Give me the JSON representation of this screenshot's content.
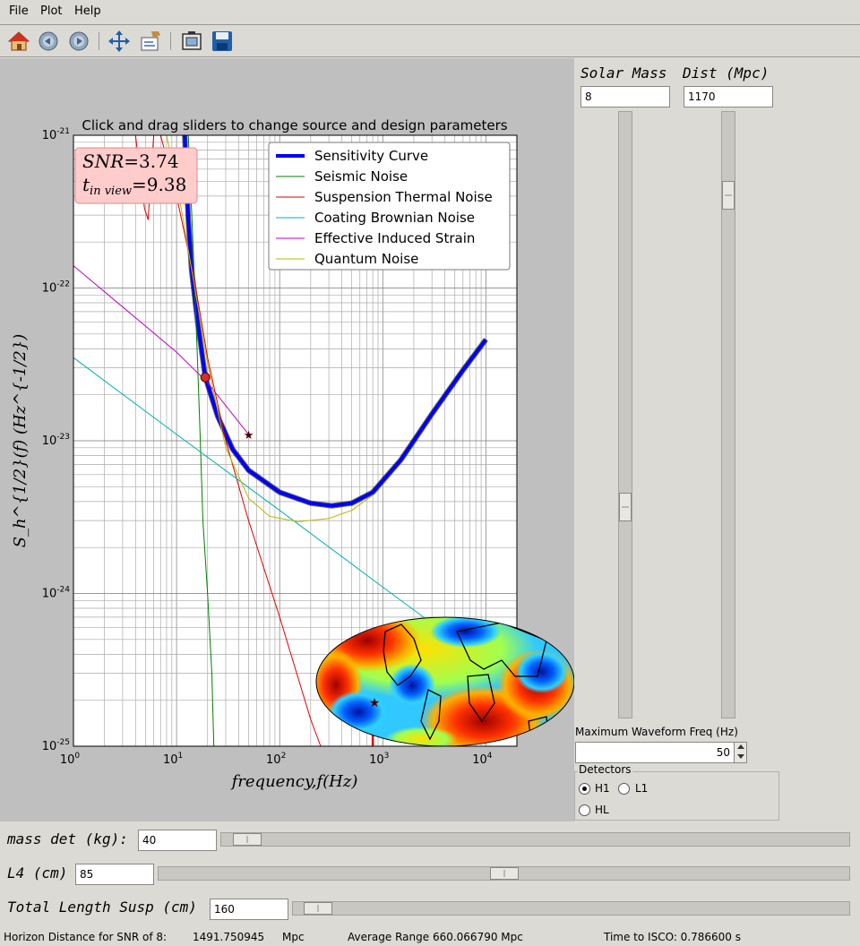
{
  "menu": {
    "file": "File",
    "plot": "Plot",
    "help": "Help"
  },
  "toolbar": [
    "home-icon",
    "back-icon",
    "forward-icon",
    "pan-icon",
    "subplots-icon",
    "zoom-icon",
    "save-icon"
  ],
  "chart_data": {
    "type": "line",
    "title": "Click and drag sliders to change source and design parameters",
    "xlabel": "frequency,f(Hz)",
    "ylabel": "S_h^{1/2}(f) (Hz^{-1/2})",
    "xscale": "log",
    "yscale": "log",
    "xlim": [
      1,
      20000
    ],
    "ylim": [
      1e-25,
      1e-21
    ],
    "grid": true,
    "legend_position": "top-right",
    "xticks": [
      "10",
      "10",
      "10",
      "10",
      "10"
    ],
    "xtick_exp": [
      "0",
      "1",
      "2",
      "3",
      "4"
    ],
    "yticks": [
      "10",
      "10",
      "10",
      "10",
      "10"
    ],
    "ytick_exp": [
      "-25",
      "-24",
      "-23",
      "-22",
      "-21"
    ],
    "annotation": {
      "snr_label": "SNR",
      "snr_value": "=3.74",
      "tview_label": "t",
      "tview_sub": "in view",
      "tview_value": "=9.38"
    },
    "series": [
      {
        "name": "Sensitivity Curve",
        "color": "#0000ff",
        "points": [
          [
            10,
            1e-20
          ],
          [
            12,
            1e-21
          ],
          [
            13,
            2.8e-22
          ],
          [
            14,
            1.3e-22
          ],
          [
            16,
            6e-23
          ],
          [
            19,
            2.6e-23
          ],
          [
            25,
            1.45e-23
          ],
          [
            35,
            8.8e-24
          ],
          [
            50,
            6.4e-24
          ],
          [
            100,
            4.6e-24
          ],
          [
            200,
            3.9e-24
          ],
          [
            320,
            3.75e-24
          ],
          [
            500,
            3.9e-24
          ],
          [
            800,
            4.6e-24
          ],
          [
            1500,
            7.5e-24
          ],
          [
            3000,
            1.5e-23
          ],
          [
            6000,
            2.9e-23
          ],
          [
            10000,
            4.6e-23
          ]
        ]
      },
      {
        "name": "Seismic Noise",
        "color": "#008000",
        "points": [
          [
            13,
            1e-21
          ],
          [
            14,
            3.2e-22
          ],
          [
            15,
            1e-22
          ],
          [
            16,
            3.2e-23
          ],
          [
            17,
            1e-23
          ],
          [
            18,
            3e-24
          ],
          [
            20,
            1e-24
          ],
          [
            22,
            3e-25
          ],
          [
            23,
            1e-25
          ]
        ]
      },
      {
        "name": "Suspension Thermal Noise",
        "color": "#e00000",
        "points": [
          [
            4,
            1e-21
          ],
          [
            4.5,
            5e-22
          ],
          [
            4.9,
            3.3e-22
          ],
          [
            5.3,
            2.8e-22
          ],
          [
            5.6,
            5e-22
          ],
          [
            6,
            1e-21
          ]
        ]
      },
      {
        "name": "Suspension Thermal Noise",
        "color": "#e00000",
        "points": [
          [
            7,
            1e-21
          ],
          [
            10,
            4e-22
          ],
          [
            15,
            1.1e-22
          ],
          [
            20,
            3.5e-23
          ],
          [
            30,
            1e-23
          ],
          [
            50,
            3e-24
          ],
          [
            100,
            7e-25
          ],
          [
            200,
            1.5e-25
          ],
          [
            250,
            1e-25
          ]
        ]
      },
      {
        "name": "Coating Brownian Noise",
        "color": "#00b0b0",
        "points": [
          [
            1,
            3.5e-23
          ],
          [
            10,
            1.1e-23
          ],
          [
            100,
            3.5e-24
          ],
          [
            1000,
            1.1e-24
          ],
          [
            10000,
            3.5e-25
          ]
        ]
      },
      {
        "name": "Effective Induced Strain",
        "color": "#c000c0",
        "points": [
          [
            1,
            1.4e-22
          ],
          [
            10,
            3.8e-23
          ],
          [
            20,
            2.4e-23
          ],
          [
            50,
            1.1e-23
          ]
        ]
      },
      {
        "name": "Quantum Noise",
        "color": "#b8b800",
        "points": [
          [
            8,
            1e-21
          ],
          [
            10,
            5e-22
          ],
          [
            15,
            1e-22
          ],
          [
            20,
            3.2e-23
          ],
          [
            30,
            9e-24
          ],
          [
            50,
            4.2e-24
          ],
          [
            80,
            3.2e-24
          ],
          [
            150,
            2.95e-24
          ],
          [
            300,
            3.1e-24
          ],
          [
            500,
            3.5e-24
          ],
          [
            800,
            4.4e-24
          ]
        ]
      }
    ],
    "markers": [
      {
        "x": 19,
        "y": 2.6e-23,
        "shape": "circle"
      },
      {
        "x": 50,
        "y": 1.1e-23,
        "shape": "star"
      }
    ],
    "vline": {
      "x": 800,
      "color": "#e00000"
    }
  },
  "sky_map_marker": "star",
  "right_panel": {
    "solar_mass_label": "Solar Mass",
    "dist_label": "Dist (Mpc)",
    "solar_mass_value": "8",
    "dist_value": "1170",
    "solar_mass_slider": 0.34,
    "dist_slider": 0.88,
    "max_freq_label": "Maximum Waveform Freq (Hz)",
    "max_freq_value": "50",
    "detectors_label": "Detectors",
    "detectors": {
      "h1": "H1",
      "l1": "L1",
      "hl": "HL"
    },
    "selected_detector": "H1"
  },
  "bottom": {
    "mass_det_label": "mass det (kg):",
    "mass_det_value": "40",
    "mass_det_slider": 0.02,
    "l4_label": "L4 (cm)",
    "l4_value": "85",
    "l4_slider": 0.5,
    "susp_label": "Total Length Susp (cm)",
    "susp_value": "160",
    "susp_slider": 0.02
  },
  "status": {
    "horizon_label": "Horizon Distance for SNR of 8:",
    "horizon_value": "1491.750945",
    "horizon_unit": "Mpc",
    "avg_range": "Average Range 660.066790 Mpc",
    "isco": "Time to ISCO: 0.786600 s"
  }
}
